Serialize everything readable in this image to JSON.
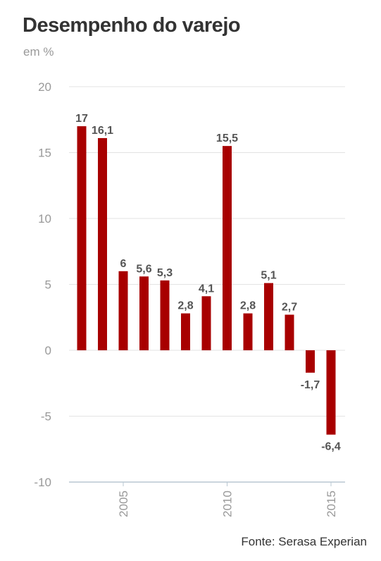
{
  "header": {
    "title": "Desempenho do varejo",
    "subtitle": "em %"
  },
  "footer": {
    "source": "Fonte: Serasa Experian"
  },
  "chart_data": {
    "type": "bar",
    "title": "Desempenho do varejo",
    "ylabel": "em %",
    "xlabel": "",
    "categories": [
      2003,
      2004,
      2005,
      2006,
      2007,
      2008,
      2009,
      2010,
      2011,
      2012,
      2013,
      2014,
      2015
    ],
    "values": [
      17,
      16.1,
      6,
      5.6,
      5.3,
      2.8,
      4.1,
      15.5,
      2.8,
      5.1,
      2.7,
      -1.7,
      -6.4
    ],
    "data_labels": [
      "17",
      "16,1",
      "6",
      "5,6",
      "5,3",
      "2,8",
      "4,1",
      "15,5",
      "2,8",
      "5,1",
      "2,7",
      "-1,7",
      "-6,4"
    ],
    "ylim": [
      -10,
      20
    ],
    "yticks": [
      20,
      15,
      10,
      5,
      0,
      -5,
      -10
    ],
    "xticks": [
      "2005",
      "2010",
      "2015"
    ],
    "bar_color": "#a80000",
    "grid": true
  }
}
